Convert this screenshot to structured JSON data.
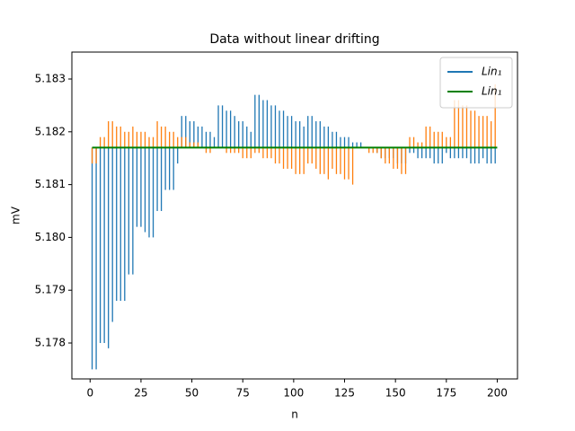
{
  "chart_data": {
    "type": "stem",
    "title": "Data without linear drifting",
    "xlabel": "n",
    "ylabel": "mV",
    "xlim": [
      -8.95,
      209.95
    ],
    "xticks": [
      0,
      25,
      50,
      75,
      100,
      125,
      150,
      175,
      200
    ],
    "ylim": [
      5.17732,
      5.18351
    ],
    "yticks": [
      5.178,
      5.179,
      {
        "value": 5.18,
        "label": "5.180"
      },
      5.181,
      5.182,
      5.183
    ],
    "legend": "upper right",
    "series": [
      {
        "name": "Lin₁",
        "color": "#1f77b4",
        "style": "stem",
        "x": [
          1,
          3,
          5,
          7,
          9,
          11,
          13,
          15,
          17,
          19,
          21,
          23,
          25,
          27,
          29,
          31,
          33,
          35,
          37,
          39,
          41,
          43,
          45,
          47,
          49,
          51,
          53,
          55,
          57,
          59,
          61,
          63,
          65,
          67,
          69,
          71,
          73,
          75,
          77,
          79,
          81,
          83,
          85,
          87,
          89,
          91,
          93,
          95,
          97,
          99,
          101,
          103,
          105,
          107,
          109,
          111,
          113,
          115,
          117,
          119,
          121,
          123,
          125,
          127,
          129,
          131,
          133,
          135,
          137,
          139,
          141,
          143,
          145,
          147,
          149,
          151,
          153,
          155,
          157,
          159,
          161,
          163,
          165,
          167,
          169,
          171,
          173,
          175,
          177,
          179,
          181,
          183,
          185,
          187,
          189,
          191,
          193,
          195,
          197,
          199
        ],
        "values": [
          5.1775,
          5.1775,
          5.178,
          5.178,
          5.1779,
          5.1784,
          5.1788,
          5.1788,
          5.1788,
          5.1793,
          5.1793,
          5.1802,
          5.1802,
          5.1801,
          5.18,
          5.18,
          5.1805,
          5.1805,
          5.1809,
          5.1809,
          5.1809,
          5.1814,
          5.1823,
          5.1823,
          5.1822,
          5.1822,
          5.1821,
          5.1821,
          5.182,
          5.182,
          5.1819,
          5.1825,
          5.1825,
          5.1824,
          5.1824,
          5.1823,
          5.1822,
          5.1822,
          5.1821,
          5.182,
          5.1827,
          5.1827,
          5.1826,
          5.1826,
          5.1825,
          5.1825,
          5.1824,
          5.1824,
          5.1823,
          5.1823,
          5.1822,
          5.1822,
          5.1821,
          5.1823,
          5.1823,
          5.1822,
          5.1822,
          5.1821,
          5.1821,
          5.182,
          5.182,
          5.1819,
          5.1819,
          5.1819,
          5.1818,
          5.1818,
          5.1818,
          5.1817,
          5.1817,
          5.1817,
          5.1816,
          5.1815,
          5.1815,
          5.1815,
          5.1815,
          5.1814,
          5.1814,
          5.1814,
          5.1816,
          5.1816,
          5.1815,
          5.1815,
          5.1815,
          5.1815,
          5.1814,
          5.1814,
          5.1814,
          5.1816,
          5.1815,
          5.1815,
          5.1815,
          5.1815,
          5.1815,
          5.1814,
          5.1814,
          5.1814,
          5.1815,
          5.1814,
          5.1814,
          5.1814
        ]
      },
      {
        "color": "#ff7f0e",
        "style": "stem",
        "x": [
          1,
          3,
          5,
          7,
          9,
          11,
          13,
          15,
          17,
          19,
          21,
          23,
          25,
          27,
          29,
          31,
          33,
          35,
          37,
          39,
          41,
          43,
          45,
          47,
          49,
          51,
          53,
          55,
          57,
          59,
          61,
          63,
          65,
          67,
          69,
          71,
          73,
          75,
          77,
          79,
          81,
          83,
          85,
          87,
          89,
          91,
          93,
          95,
          97,
          99,
          101,
          103,
          105,
          107,
          109,
          111,
          113,
          115,
          117,
          119,
          121,
          123,
          125,
          127,
          129,
          131,
          133,
          135,
          137,
          139,
          141,
          143,
          145,
          147,
          149,
          151,
          153,
          155,
          157,
          159,
          161,
          163,
          165,
          167,
          169,
          171,
          173,
          175,
          177,
          179,
          181,
          183,
          185,
          187,
          189,
          191,
          193,
          195,
          197,
          199
        ],
        "values": [
          5.1814,
          5.1814,
          5.1819,
          5.1819,
          5.1822,
          5.1822,
          5.1821,
          5.1821,
          5.182,
          5.182,
          5.1821,
          5.182,
          5.182,
          5.182,
          5.1819,
          5.1819,
          5.1822,
          5.1821,
          5.1821,
          5.182,
          5.182,
          5.1819,
          5.1819,
          5.1819,
          5.1818,
          5.1818,
          5.1818,
          5.1817,
          5.1816,
          5.1816,
          5.1817,
          5.1817,
          5.1817,
          5.1816,
          5.1816,
          5.1816,
          5.1816,
          5.1815,
          5.1815,
          5.1815,
          5.1816,
          5.1816,
          5.1815,
          5.1815,
          5.1815,
          5.1814,
          5.1814,
          5.1813,
          5.1813,
          5.1813,
          5.1812,
          5.1812,
          5.1812,
          5.1814,
          5.1814,
          5.1813,
          5.1812,
          5.1812,
          5.1811,
          5.1813,
          5.1812,
          5.1812,
          5.1811,
          5.1811,
          5.181,
          5.1817,
          5.1817,
          5.1817,
          5.1816,
          5.1816,
          5.1816,
          5.1815,
          5.1814,
          5.1814,
          5.1813,
          5.1813,
          5.1812,
          5.1812,
          5.1819,
          5.1819,
          5.1818,
          5.1818,
          5.1821,
          5.1821,
          5.182,
          5.182,
          5.182,
          5.1819,
          5.1819,
          5.1826,
          5.1826,
          5.1825,
          5.1825,
          5.1824,
          5.1824,
          5.1823,
          5.1823,
          5.1823,
          5.1822,
          5.1829
        ]
      },
      {
        "name": "Lin₁",
        "color": "#008000",
        "style": "line",
        "x": [
          1,
          200
        ],
        "values": [
          5.1817,
          5.1817
        ]
      }
    ]
  }
}
